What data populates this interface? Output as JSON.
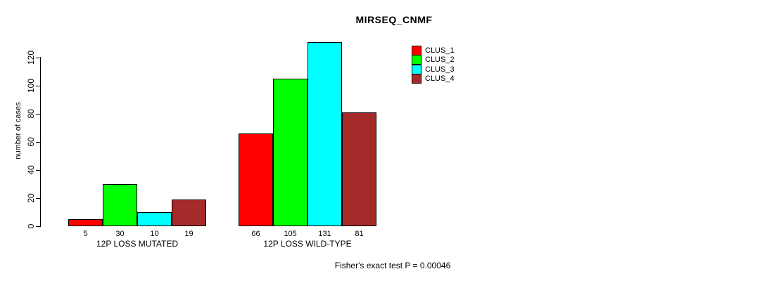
{
  "chart_data": {
    "type": "bar",
    "title": "MIRSEQ_CNMF",
    "ylabel": "number of cases",
    "xlabel": "",
    "ylim": [
      0,
      131
    ],
    "yticks": [
      0,
      20,
      40,
      60,
      80,
      100,
      120
    ],
    "grid": false,
    "legend_position": "top-right",
    "categories": [
      "12P LOSS MUTATED",
      "12P LOSS WILD-TYPE"
    ],
    "series": [
      {
        "name": "CLUS_1",
        "color": "#FF0000",
        "values": [
          5,
          66
        ]
      },
      {
        "name": "CLUS_2",
        "color": "#00FF00",
        "values": [
          30,
          105
        ]
      },
      {
        "name": "CLUS_3",
        "color": "#00FFFF",
        "values": [
          10,
          131
        ]
      },
      {
        "name": "CLUS_4",
        "color": "#A52A2A",
        "values": [
          19,
          81
        ]
      }
    ],
    "bar_value_labels": [
      [
        5,
        30,
        10,
        19
      ],
      [
        66,
        105,
        131,
        81
      ]
    ],
    "annotation": "Fisher's exact test P = 0.00046",
    "colors": {
      "axis": "#000000",
      "text": "#000000",
      "background": "#FFFFFF"
    }
  }
}
